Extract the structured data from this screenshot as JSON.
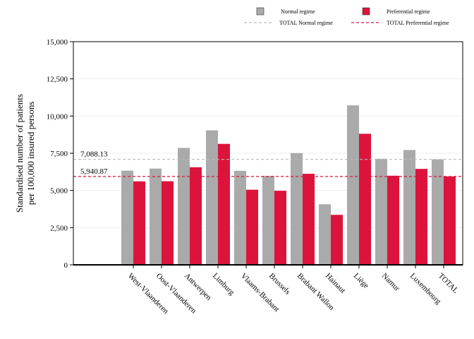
{
  "chart_data": {
    "type": "bar",
    "ylabel_lines": [
      "Standardised number of patients",
      "per 100,000 insured persons"
    ],
    "ylim": [
      0,
      15000
    ],
    "yticks": [
      0,
      2500,
      5000,
      7500,
      10000,
      12500,
      15000
    ],
    "ytick_labels": [
      "0",
      "2,500",
      "5,000",
      "7,500",
      "10,000",
      "12,500",
      "15,000"
    ],
    "grid": true,
    "legend_placement": "top",
    "categories": [
      "West-Vlaanderen",
      "Oost-Vlaanderen",
      "Antwerpen",
      "Limburg",
      "Vlaams-Brabant",
      "Brussels",
      "Brabant Wallon",
      "Hainaut",
      "Liège",
      "Namur",
      "Luxembourg",
      "TOTAL"
    ],
    "series": [
      {
        "name": "Normal regime",
        "color": "#aaaaaa",
        "values": [
          6330,
          6470,
          7860,
          9040,
          6320,
          5980,
          7510,
          4070,
          10720,
          7130,
          7720,
          7088.13
        ]
      },
      {
        "name": "Preferential regime",
        "color": "#dc143c",
        "values": [
          5610,
          5620,
          6560,
          8130,
          5050,
          4980,
          6120,
          3360,
          8810,
          5990,
          6450,
          5940.87
        ]
      }
    ],
    "reference_lines": [
      {
        "name": "TOTAL Normal regime",
        "value": 7088.13,
        "label": "7,088.13",
        "color": "#bbbbbb"
      },
      {
        "name": "TOTAL Preferential regime",
        "value": 5940.87,
        "label": "5,940.87",
        "color": "#dc143c"
      }
    ]
  }
}
